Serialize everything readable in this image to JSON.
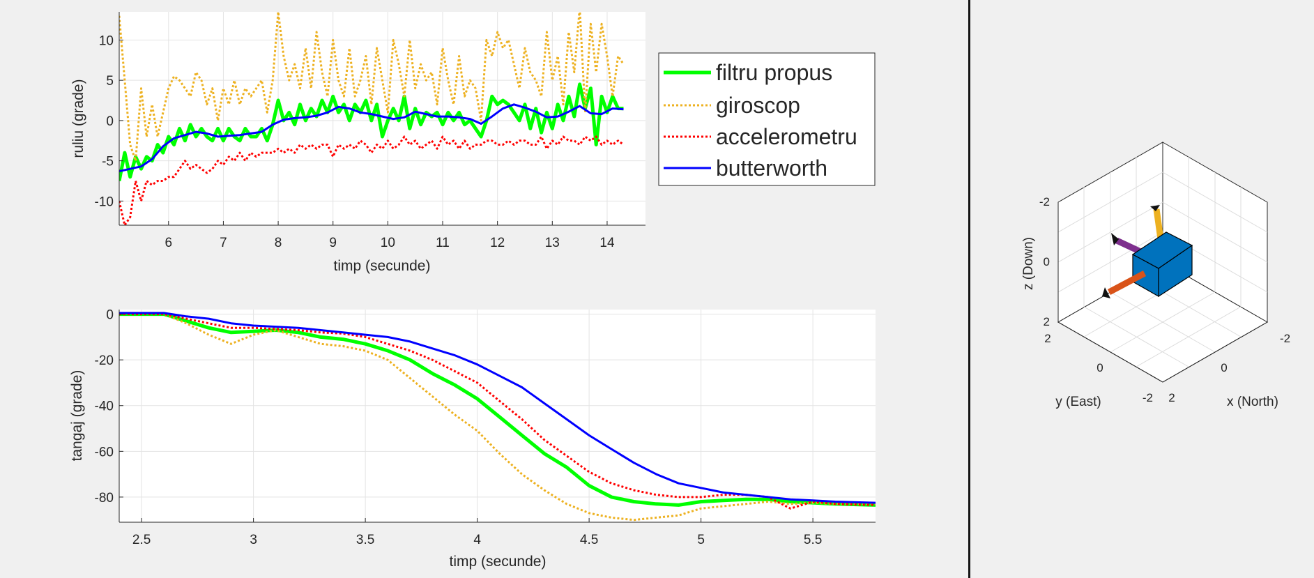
{
  "chart_data": [
    {
      "type": "line",
      "xlabel": "timp (secunde)",
      "ylabel": "ruliu (grade)",
      "xlim": [
        5.1,
        14.7
      ],
      "ylim": [
        -13,
        13.5
      ],
      "xticks": [
        6,
        7,
        8,
        9,
        10,
        11,
        12,
        13,
        14
      ],
      "yticks": [
        -10,
        -5,
        0,
        5,
        10
      ],
      "grid": true,
      "legend_position": "outside-right",
      "legend": [
        "filtru propus",
        "giroscop",
        "accelerometru",
        "butterworth"
      ],
      "series": [
        {
          "name": "filtru propus",
          "color": "#00ff00",
          "style": "solid",
          "width": 5,
          "x": [
            5.1,
            5.2,
            5.3,
            5.4,
            5.5,
            5.6,
            5.7,
            5.8,
            5.9,
            6.0,
            6.1,
            6.2,
            6.3,
            6.4,
            6.5,
            6.6,
            6.7,
            6.8,
            6.9,
            7.0,
            7.1,
            7.2,
            7.3,
            7.4,
            7.5,
            7.6,
            7.7,
            7.8,
            7.9,
            8.0,
            8.1,
            8.2,
            8.3,
            8.4,
            8.5,
            8.6,
            8.7,
            8.8,
            8.9,
            9.0,
            9.1,
            9.2,
            9.3,
            9.4,
            9.5,
            9.6,
            9.7,
            9.8,
            9.9,
            10.0,
            10.1,
            10.2,
            10.3,
            10.4,
            10.5,
            10.6,
            10.7,
            10.8,
            10.9,
            11.0,
            11.1,
            11.2,
            11.3,
            11.4,
            11.5,
            11.6,
            11.7,
            11.8,
            11.9,
            12.0,
            12.1,
            12.2,
            12.3,
            12.4,
            12.5,
            12.6,
            12.7,
            12.8,
            12.9,
            13.0,
            13.1,
            13.2,
            13.3,
            13.4,
            13.5,
            13.6,
            13.7,
            13.8,
            13.9,
            14.0,
            14.1,
            14.2,
            14.3
          ],
          "y": [
            -7.5,
            -4,
            -7,
            -4.5,
            -6,
            -4.5,
            -5,
            -3,
            -4,
            -2,
            -3,
            -1,
            -2.5,
            -0.5,
            -2,
            -1,
            -2,
            -2.5,
            -1,
            -2.5,
            -1,
            -2,
            -2.5,
            -1,
            -2,
            -2,
            -1,
            -2.5,
            -0.5,
            2.5,
            0,
            1,
            -0.5,
            2,
            0,
            1.5,
            0.5,
            2.5,
            1,
            3,
            1,
            2,
            0,
            2,
            1,
            2.5,
            0,
            2,
            -2,
            0,
            1.5,
            0,
            3,
            -1,
            1.5,
            -0.5,
            1,
            0.5,
            1,
            -0.5,
            1,
            0,
            1,
            -0.5,
            0,
            -1,
            -2,
            0,
            3,
            2,
            2.5,
            2,
            1,
            0,
            2,
            -1,
            1.5,
            -1.5,
            1,
            -1,
            2,
            0,
            3,
            0.5,
            4.5,
            1.5,
            4,
            -3,
            3,
            1,
            3,
            1.5,
            1.5
          ]
        },
        {
          "name": "giroscop",
          "color": "#edb120",
          "style": "dotted",
          "width": 3,
          "x": [
            5.1,
            5.2,
            5.3,
            5.4,
            5.5,
            5.6,
            5.7,
            5.8,
            5.9,
            6.0,
            6.1,
            6.2,
            6.3,
            6.4,
            6.5,
            6.6,
            6.7,
            6.8,
            6.9,
            7.0,
            7.1,
            7.2,
            7.3,
            7.4,
            7.5,
            7.6,
            7.7,
            7.8,
            7.9,
            8.0,
            8.1,
            8.2,
            8.3,
            8.4,
            8.5,
            8.6,
            8.7,
            8.8,
            8.9,
            9.0,
            9.1,
            9.2,
            9.3,
            9.4,
            9.5,
            9.6,
            9.7,
            9.8,
            9.9,
            10.0,
            10.1,
            10.2,
            10.3,
            10.4,
            10.5,
            10.6,
            10.7,
            10.8,
            10.9,
            11.0,
            11.1,
            11.2,
            11.3,
            11.4,
            11.5,
            11.6,
            11.7,
            11.8,
            11.9,
            12.0,
            12.1,
            12.2,
            12.3,
            12.4,
            12.5,
            12.6,
            12.7,
            12.8,
            12.9,
            13.0,
            13.1,
            13.2,
            13.3,
            13.4,
            13.5,
            13.6,
            13.7,
            13.8,
            13.9,
            14.0,
            14.1,
            14.2,
            14.3
          ],
          "y": [
            13,
            5,
            -3,
            -5,
            4,
            -2,
            2,
            -2,
            1,
            4,
            5.5,
            5,
            4,
            3,
            6,
            5,
            2,
            4,
            0,
            4,
            2,
            5,
            2,
            4,
            3,
            4,
            5,
            1,
            5,
            13.5,
            8,
            5,
            7,
            4,
            9,
            4,
            11,
            6,
            3,
            10,
            5,
            3,
            9,
            3,
            5,
            8,
            2,
            9,
            5,
            1,
            10,
            7,
            3,
            10,
            4,
            7,
            5,
            6,
            2,
            9,
            5,
            2,
            8,
            3,
            5,
            4,
            0,
            10,
            8,
            11,
            9,
            10,
            7,
            4,
            9,
            6,
            5,
            3,
            11,
            5,
            8,
            2,
            11,
            6,
            14,
            1,
            12,
            6,
            12,
            8,
            3,
            8,
            7
          ]
        },
        {
          "name": "accelerometru",
          "color": "#ff0000",
          "style": "dotted",
          "width": 3,
          "x": [
            5.1,
            5.2,
            5.3,
            5.4,
            5.5,
            5.6,
            5.7,
            5.8,
            5.9,
            6.0,
            6.1,
            6.2,
            6.3,
            6.4,
            6.5,
            6.6,
            6.7,
            6.8,
            6.9,
            7.0,
            7.1,
            7.2,
            7.3,
            7.4,
            7.5,
            7.6,
            7.7,
            7.8,
            7.9,
            8.0,
            8.1,
            8.2,
            8.3,
            8.4,
            8.5,
            8.6,
            8.7,
            8.8,
            8.9,
            9.0,
            9.1,
            9.2,
            9.3,
            9.4,
            9.5,
            9.6,
            9.7,
            9.8,
            9.9,
            10.0,
            10.1,
            10.2,
            10.3,
            10.4,
            10.5,
            10.6,
            10.7,
            10.8,
            10.9,
            11.0,
            11.1,
            11.2,
            11.3,
            11.4,
            11.5,
            11.6,
            11.7,
            11.8,
            11.9,
            12.0,
            12.1,
            12.2,
            12.3,
            12.4,
            12.5,
            12.6,
            12.7,
            12.8,
            12.9,
            13.0,
            13.1,
            13.2,
            13.3,
            13.4,
            13.5,
            13.6,
            13.7,
            13.8,
            13.9,
            14.0,
            14.1,
            14.2,
            14.3
          ],
          "y": [
            -10,
            -13,
            -12,
            -7.5,
            -10,
            -7.5,
            -8,
            -7.5,
            -7.5,
            -7,
            -7,
            -6,
            -5,
            -6,
            -5.5,
            -6,
            -6.5,
            -6,
            -5,
            -5.5,
            -4.5,
            -5,
            -4,
            -5,
            -4,
            -4.5,
            -4,
            -4,
            -4,
            -3.5,
            -4,
            -3.5,
            -4,
            -3,
            -3.5,
            -3,
            -3.5,
            -3,
            -3,
            -4.5,
            -3,
            -3.5,
            -3,
            -3.5,
            -2.5,
            -3,
            -4,
            -3,
            -3.5,
            -2.5,
            -3.5,
            -3,
            -2,
            -3,
            -2.5,
            -3.5,
            -3,
            -2.5,
            -3.5,
            -2,
            -3,
            -2.5,
            -3.5,
            -2.5,
            -3.5,
            -3,
            -3,
            -2.5,
            -2.5,
            -3,
            -3,
            -2.5,
            -3,
            -2.5,
            -2.5,
            -3,
            -3,
            -2,
            -3.5,
            -2.5,
            -3,
            -2,
            -2.5,
            -2.5,
            -3,
            -2,
            -2.5,
            -2,
            -3,
            -2.5,
            -3,
            -2.5,
            -3
          ]
        },
        {
          "name": "butterworth",
          "color": "#0000ff",
          "style": "solid",
          "width": 3,
          "x": [
            5.1,
            5.3,
            5.5,
            5.7,
            5.9,
            6.1,
            6.3,
            6.5,
            6.7,
            6.9,
            7.1,
            7.3,
            7.5,
            7.7,
            7.9,
            8.1,
            8.3,
            8.5,
            8.7,
            8.9,
            9.1,
            9.3,
            9.5,
            9.7,
            9.9,
            10.1,
            10.3,
            10.5,
            10.7,
            10.9,
            11.1,
            11.3,
            11.5,
            11.7,
            11.9,
            12.1,
            12.3,
            12.5,
            12.7,
            12.9,
            13.1,
            13.3,
            13.5,
            13.7,
            13.9,
            14.1,
            14.3
          ],
          "y": [
            -6.3,
            -6,
            -5.7,
            -4.8,
            -3.2,
            -2.2,
            -1.8,
            -1.4,
            -1.6,
            -2,
            -1.9,
            -1.8,
            -1.6,
            -1.4,
            -0.5,
            0.1,
            0.3,
            0.4,
            0.6,
            1,
            1.7,
            1.5,
            1,
            0.8,
            0.5,
            0.2,
            0.4,
            1.1,
            0.8,
            0.5,
            0.5,
            0.4,
            0.2,
            -0.4,
            0.5,
            1.5,
            2,
            1.6,
            1.1,
            0.4,
            0.5,
            1.1,
            1.8,
            0.9,
            0.8,
            1.5,
            1.4
          ]
        }
      ]
    },
    {
      "type": "line",
      "xlabel": "timp (secunde)",
      "ylabel": "tangaj (grade)",
      "xlim": [
        2.4,
        5.78
      ],
      "ylim": [
        -91,
        2
      ],
      "xticks": [
        2.5,
        3,
        3.5,
        4,
        4.5,
        5,
        5.5
      ],
      "yticks": [
        -80,
        -60,
        -40,
        -20,
        0
      ],
      "grid": true,
      "series": [
        {
          "name": "filtru propus",
          "color": "#00ff00",
          "style": "solid",
          "width": 5,
          "x": [
            2.4,
            2.6,
            2.7,
            2.8,
            2.9,
            3.0,
            3.1,
            3.2,
            3.3,
            3.4,
            3.5,
            3.6,
            3.7,
            3.8,
            3.9,
            4.0,
            4.1,
            4.2,
            4.3,
            4.4,
            4.5,
            4.6,
            4.7,
            4.8,
            4.9,
            5.0,
            5.1,
            5.2,
            5.3,
            5.4,
            5.5,
            5.6,
            5.78
          ],
          "y": [
            0,
            0,
            -3,
            -6,
            -8,
            -7.5,
            -7,
            -8,
            -10,
            -11,
            -13,
            -16,
            -20,
            -26,
            -31,
            -37,
            -45,
            -53,
            -61,
            -67,
            -75,
            -80,
            -82,
            -83,
            -83.5,
            -82,
            -81.5,
            -81,
            -81,
            -82,
            -82.5,
            -83,
            -83.5
          ]
        },
        {
          "name": "giroscop",
          "color": "#edb120",
          "style": "dotted",
          "width": 3,
          "x": [
            2.4,
            2.6,
            2.7,
            2.8,
            2.9,
            3.0,
            3.1,
            3.2,
            3.3,
            3.4,
            3.5,
            3.6,
            3.7,
            3.8,
            3.9,
            4.0,
            4.1,
            4.2,
            4.3,
            4.4,
            4.5,
            4.6,
            4.7,
            4.8,
            4.9,
            5.0,
            5.1,
            5.2,
            5.3,
            5.4,
            5.5,
            5.6,
            5.78
          ],
          "y": [
            0,
            0,
            -4,
            -9,
            -13,
            -9,
            -7,
            -10,
            -13,
            -14,
            -16,
            -20,
            -28,
            -36,
            -44,
            -51,
            -61,
            -70,
            -77,
            -83,
            -87,
            -89,
            -90,
            -89,
            -88,
            -85,
            -84,
            -83,
            -82,
            -83,
            -82.5,
            -83,
            -83
          ]
        },
        {
          "name": "accelerometru",
          "color": "#ff0000",
          "style": "dotted",
          "width": 3,
          "x": [
            2.4,
            2.6,
            2.7,
            2.8,
            2.9,
            3.0,
            3.1,
            3.2,
            3.3,
            3.4,
            3.5,
            3.6,
            3.7,
            3.8,
            3.9,
            4.0,
            4.1,
            4.2,
            4.3,
            4.4,
            4.5,
            4.6,
            4.7,
            4.8,
            4.9,
            5.0,
            5.1,
            5.2,
            5.3,
            5.4,
            5.5,
            5.6,
            5.78
          ],
          "y": [
            0,
            0,
            -2,
            -4,
            -6,
            -6,
            -6.5,
            -7,
            -8,
            -8.5,
            -10,
            -13,
            -16,
            -20,
            -25,
            -30,
            -38,
            -46,
            -55,
            -62,
            -69,
            -74,
            -77,
            -79,
            -80,
            -80,
            -79,
            -79,
            -80,
            -85,
            -82,
            -83,
            -83.5
          ]
        },
        {
          "name": "butterworth",
          "color": "#0000ff",
          "style": "solid",
          "width": 3,
          "x": [
            2.4,
            2.6,
            2.7,
            2.8,
            2.9,
            3.0,
            3.1,
            3.2,
            3.3,
            3.4,
            3.5,
            3.6,
            3.7,
            3.8,
            3.9,
            4.0,
            4.1,
            4.2,
            4.3,
            4.4,
            4.5,
            4.6,
            4.7,
            4.8,
            4.9,
            5.0,
            5.1,
            5.2,
            5.3,
            5.4,
            5.5,
            5.6,
            5.78
          ],
          "y": [
            0.5,
            0.5,
            -1,
            -2,
            -4,
            -5,
            -5.5,
            -6,
            -7,
            -8,
            -9,
            -10,
            -12,
            -15,
            -18,
            -22,
            -27,
            -32,
            -39,
            -46,
            -53,
            -59,
            -65,
            -70,
            -74,
            -76,
            -78,
            -79,
            -80,
            -81,
            -81.5,
            -82,
            -82.5
          ]
        }
      ]
    },
    {
      "type": "3d-orientation",
      "xlabel": "x (North)",
      "ylabel": "y (East)",
      "zlabel": "z (Down)",
      "z_ticks": [
        "-2",
        "0",
        "2"
      ],
      "y_ticks": [
        "2",
        "0",
        "-2"
      ],
      "x_ticks": [
        "2",
        "0",
        "-2"
      ],
      "box_color": "#0072bd",
      "axis_colors": {
        "x": "#d95319",
        "y": "#7e2f8e",
        "z": "#edb120"
      }
    }
  ]
}
